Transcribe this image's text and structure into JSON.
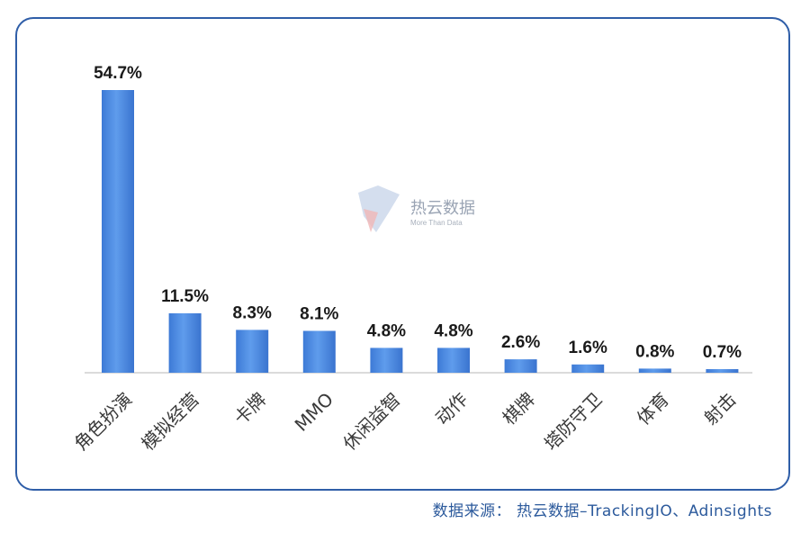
{
  "chart_data": {
    "type": "bar",
    "categories": [
      "角色扮演",
      "模拟经营",
      "卡牌",
      "MMO",
      "休闲益智",
      "动作",
      "棋牌",
      "塔防守卫",
      "体育",
      "射击"
    ],
    "values": [
      54.7,
      11.5,
      8.3,
      8.1,
      4.8,
      4.8,
      2.6,
      1.6,
      0.8,
      0.7
    ],
    "value_labels": [
      "54.7%",
      "11.5%",
      "8.3%",
      "8.1%",
      "4.8%",
      "4.8%",
      "2.6%",
      "1.6%",
      "0.8%",
      "0.7%"
    ],
    "ylim": [
      0,
      54.7
    ],
    "grid": false,
    "bar_color": "#4a8be0"
  },
  "watermark": {
    "title": "热云数据",
    "subtitle": "More Than Data"
  },
  "source_text": "数据来源： 热云数据–TrackingIO、Adinsights"
}
